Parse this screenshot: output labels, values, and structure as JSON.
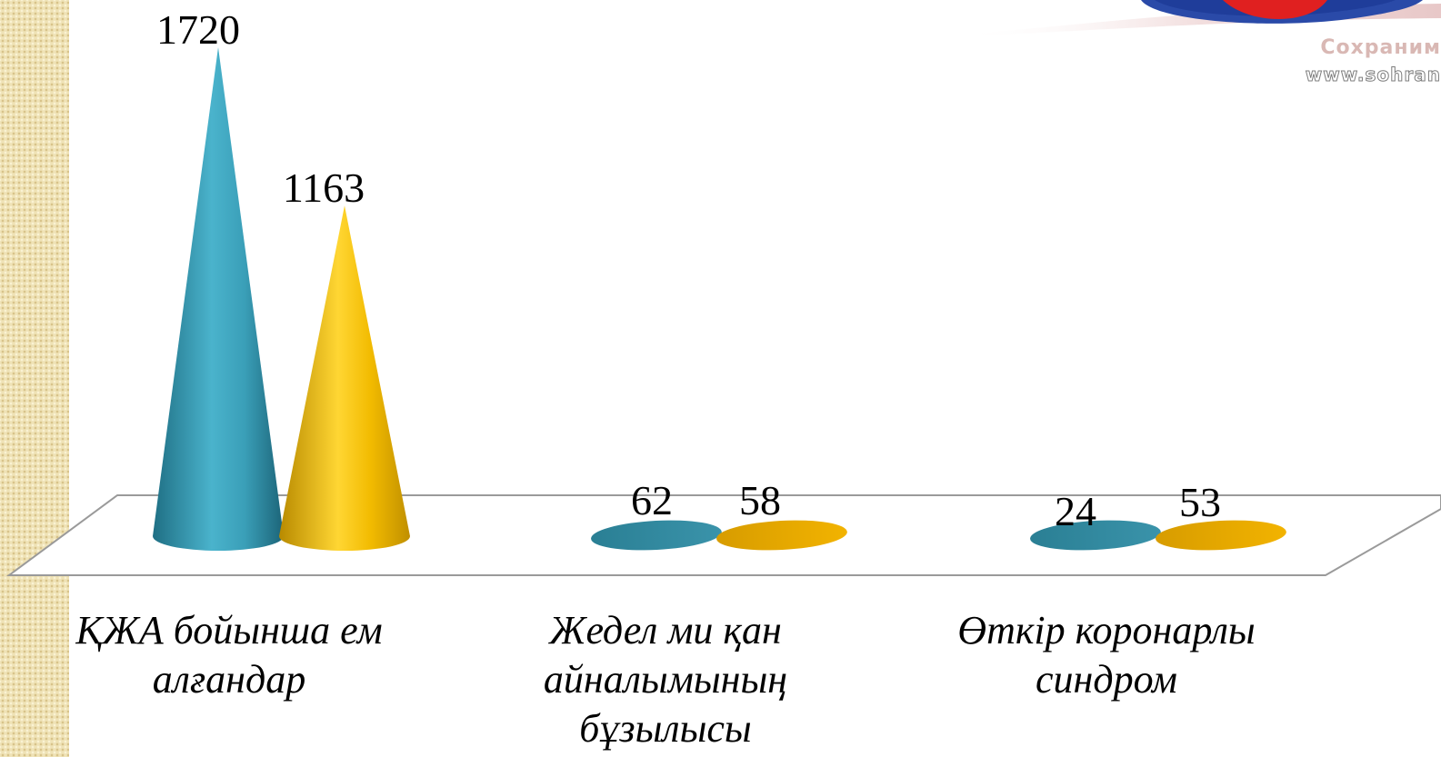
{
  "chart_data": {
    "type": "bar",
    "style": "3d-cone",
    "categories": [
      "ҚЖА бойынша ем алғандар",
      "Жедел ми қан айналымының бұзылысы",
      "Өткір коронарлы синдром"
    ],
    "series": [
      {
        "values": [
          1720,
          62,
          24
        ],
        "color": "#3b9fb8"
      },
      {
        "values": [
          1163,
          58,
          53
        ],
        "color": "#f0b800"
      }
    ],
    "data_labels": [
      "1720",
      "62",
      "24",
      "1163",
      "58",
      "53"
    ],
    "ylim": [
      0,
      1720
    ],
    "legend": "none",
    "grid": false,
    "title": "",
    "xlabel": "",
    "ylabel": ""
  },
  "watermark": {
    "line1": "Сохраним",
    "line2": "www.sohran"
  }
}
